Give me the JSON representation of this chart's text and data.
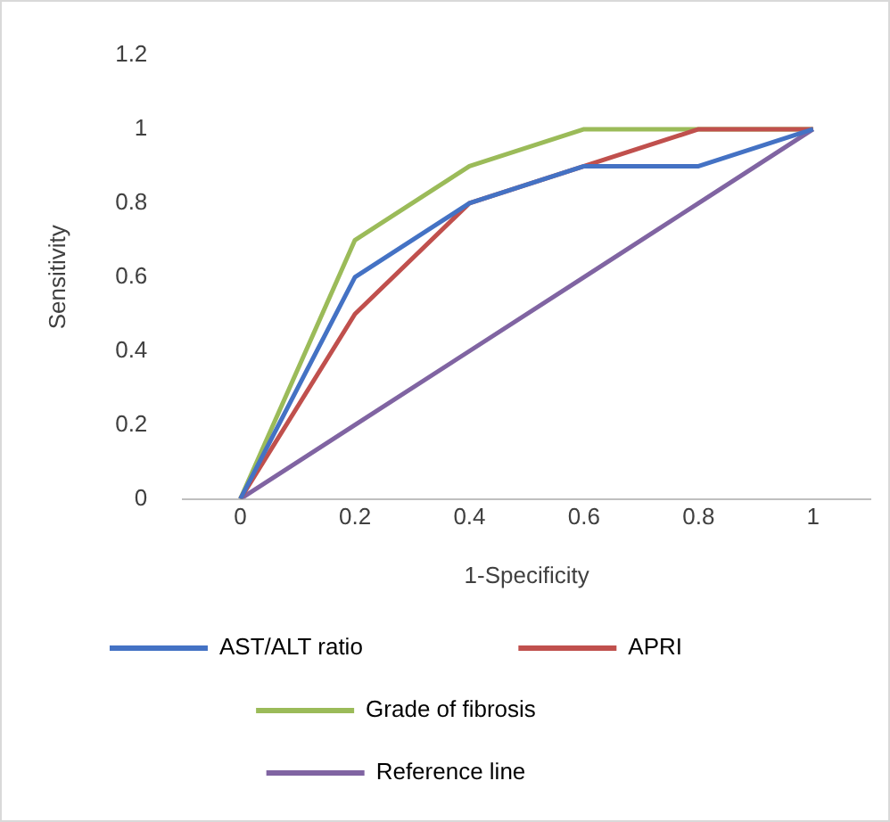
{
  "chart_data": {
    "type": "line",
    "xlabel": "1-Specificity",
    "ylabel": "Sensitivity",
    "x": [
      0,
      0.2,
      0.4,
      0.6,
      0.8,
      1
    ],
    "series": [
      {
        "name": "AST/ALT ratio",
        "color": "#4472c4",
        "values": [
          0,
          0.6,
          0.8,
          0.9,
          0.9,
          1
        ]
      },
      {
        "name": "APRI",
        "color": "#c0504d",
        "values": [
          0,
          0.5,
          0.8,
          0.9,
          1,
          1
        ]
      },
      {
        "name": "Grade of fibrosis",
        "color": "#9bbb59",
        "values": [
          0,
          0.7,
          0.9,
          1,
          1,
          1
        ]
      },
      {
        "name": "Reference line",
        "color": "#8064a2",
        "values": [
          0,
          0.2,
          0.4,
          0.6,
          0.8,
          1
        ]
      }
    ],
    "xlim": [
      -0.1,
      1.1
    ],
    "xticks": [
      0,
      0.2,
      0.4,
      0.6,
      0.8,
      1
    ],
    "ylim": [
      0,
      1.2
    ],
    "yticks": [
      0,
      0.2,
      0.4,
      0.6,
      0.8,
      1,
      1.2
    ],
    "grid": false,
    "legend": "bottom",
    "marker": "none",
    "line_style": "solid"
  }
}
